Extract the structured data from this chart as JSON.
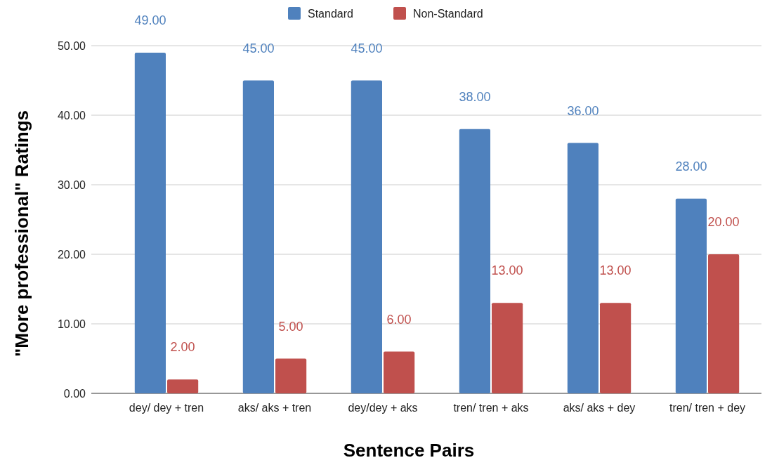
{
  "chart_data": {
    "type": "bar",
    "xlabel": "Sentence Pairs",
    "ylabel": "\"More professional\" Ratings",
    "categories": [
      "dey/ dey + tren",
      "aks/ aks + tren",
      "dey/dey + aks",
      "tren/ tren + aks",
      "aks/ aks + dey",
      "tren/ tren + dey"
    ],
    "series": [
      {
        "name": "Standard",
        "color": "#4f81bd",
        "values": [
          49,
          45,
          45,
          38,
          36,
          28
        ],
        "value_labels": [
          "49.00",
          "45.00",
          "45.00",
          "38.00",
          "36.00",
          "28.00"
        ]
      },
      {
        "name": "Non-Standard",
        "color": "#c0504d",
        "values": [
          2,
          5,
          6,
          13,
          13,
          20
        ],
        "value_labels": [
          "2.00",
          "5.00",
          "6.00",
          "13.00",
          "13.00",
          "20.00"
        ]
      }
    ],
    "ylim": [
      0,
      50
    ],
    "yticks": [
      {
        "value": 0,
        "label": "0.00"
      },
      {
        "value": 10,
        "label": "10.00"
      },
      {
        "value": 20,
        "label": "20.00"
      },
      {
        "value": 30,
        "label": "30.00"
      },
      {
        "value": 40,
        "label": "40.00"
      },
      {
        "value": 50,
        "label": "50.00"
      }
    ],
    "grid": "y",
    "legend": "top"
  }
}
